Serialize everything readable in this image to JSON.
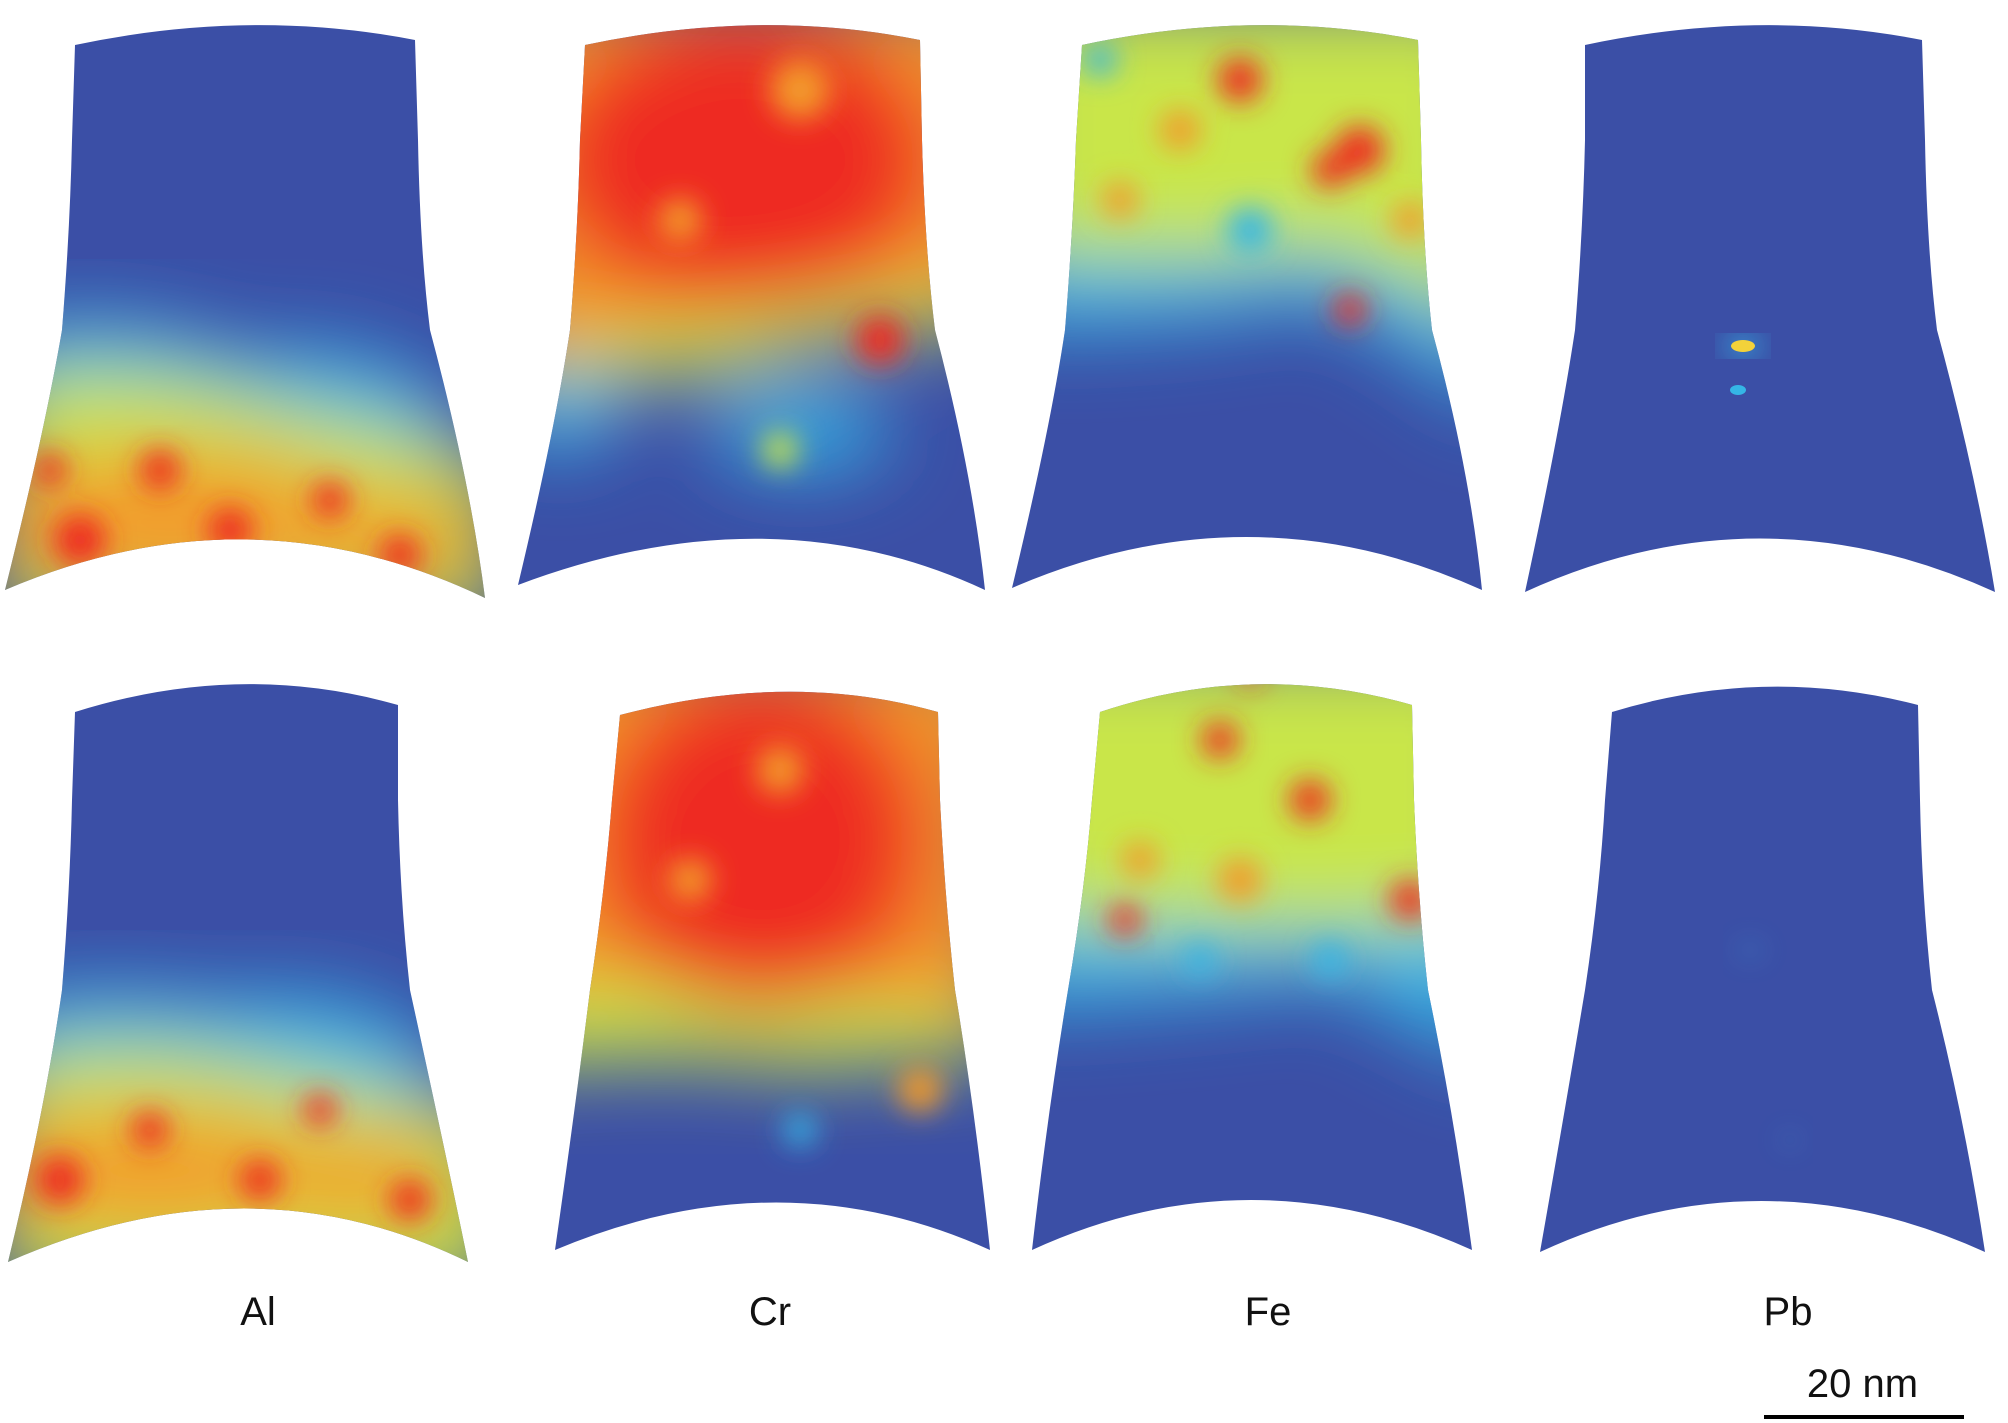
{
  "elements": [
    {
      "symbol": "Al",
      "top_map": "tip-map-al-top",
      "bottom_map": "tip-map-al-bottom"
    },
    {
      "symbol": "Cr",
      "top_map": "tip-map-cr-top",
      "bottom_map": "tip-map-cr-bottom"
    },
    {
      "symbol": "Fe",
      "top_map": "tip-map-fe-top",
      "bottom_map": "tip-map-fe-bottom"
    },
    {
      "symbol": "Pb",
      "top_map": "tip-map-pb-top",
      "bottom_map": "tip-map-pb-bottom"
    }
  ],
  "scale_bar": {
    "label": "20 nm"
  },
  "colormap": {
    "low": "#3b4fa6",
    "mid_low": "#35b6e6",
    "mid": "#c9e64a",
    "mid_high": "#f39a2c",
    "high": "#ee2a24"
  }
}
